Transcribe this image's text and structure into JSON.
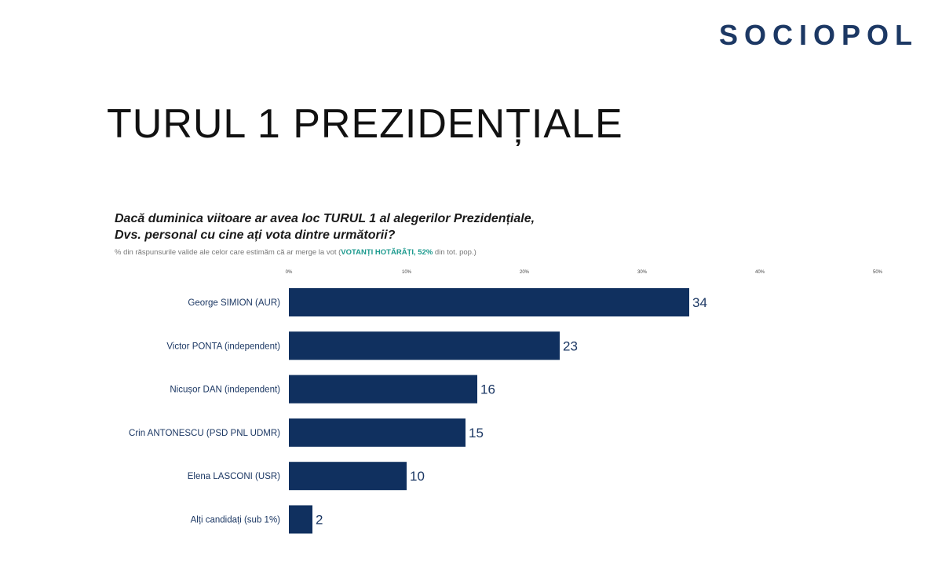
{
  "header": {
    "logo_text": "SOCIOPOL",
    "title": "TURUL 1 PREZIDENȚIALE"
  },
  "chart_data": {
    "type": "bar",
    "orientation": "horizontal",
    "question_line1": "Dacă duminica viitoare ar avea loc TURUL 1 al alegerilor Prezidențiale,",
    "question_line2": "Dvs. personal cu cine ați vota dintre următorii?",
    "note_prefix": "% din răspunsurile valide ale celor care estimăm că ar merge la vot (",
    "note_highlight": "VOTANȚI HOTĂRÂȚI, 52%",
    "note_suffix": " din tot. pop.)",
    "categories": [
      "George SIMION (AUR)",
      "Victor PONTA (independent)",
      "Nicușor DAN (independent)",
      "Crin ANTONESCU (PSD PNL UDMR)",
      "Elena LASCONI (USR)",
      "Alți candidați (sub 1%)"
    ],
    "values": [
      34,
      23,
      16,
      15,
      10,
      2
    ],
    "xlim": [
      0,
      50
    ],
    "x_ticks": [
      0,
      10,
      20,
      30,
      40,
      50
    ],
    "x_tick_labels": [
      "0%",
      "10%",
      "20%",
      "30%",
      "40%",
      "50%"
    ],
    "bar_color": "#10305f",
    "label_color": "#1c3864",
    "grid": false,
    "legend": "none"
  }
}
